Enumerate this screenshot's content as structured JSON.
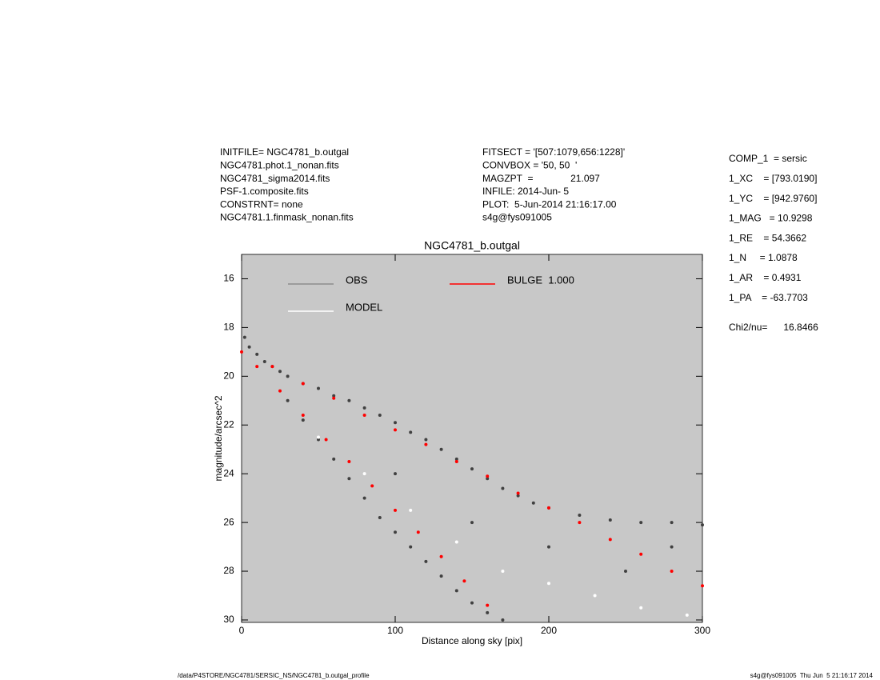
{
  "header": {
    "left": [
      "INITFILE= NGC4781_b.outgal",
      "NGC4781.phot.1_nonan.fits",
      "NGC4781_sigma2014.fits",
      "PSF-1.composite.fits",
      "CONSTRNT= none",
      "NGC4781.1.finmask_nonan.fits"
    ],
    "middle": [
      "FITSECT = '[507:1079,656:1228]'",
      "CONVBOX = '50, 50  '",
      "MAGZPT  =              21.097",
      "INFILE: 2014-Jun- 5",
      "PLOT:  5-Jun-2014 21:16:17.00",
      "s4g@fys091005"
    ],
    "right": [
      "COMP_1  = sersic",
      "1_XC    = [793.0190]",
      "1_YC    = [942.9760]",
      "1_MAG   = 10.9298",
      "1_RE    = 54.3662",
      "1_N     = 1.0878",
      "1_AR    = 0.4931",
      "1_PA    = -63.7703"
    ],
    "chi": "Chi2/nu=      16.8466"
  },
  "chart_data": {
    "type": "scatter",
    "title": "NGC4781_b.outgal",
    "x_label": "Distance along sky [pix]",
    "y_label": "magnitude/arcsec^2",
    "xlim": [
      0,
      300
    ],
    "ylim": [
      30.1,
      15
    ],
    "xticks": [
      0,
      100,
      200,
      300
    ],
    "yticks": [
      16,
      18,
      20,
      22,
      24,
      26,
      28,
      30
    ],
    "background": "#c8c8c8",
    "series": [
      {
        "name": "OBS",
        "color": "#404040",
        "legend_color": "#8c8c8c",
        "x": [
          2,
          5,
          10,
          15,
          20,
          25,
          30,
          40,
          50,
          60,
          70,
          80,
          90,
          100,
          110,
          120,
          130,
          140,
          150,
          160,
          170,
          180,
          190,
          200,
          220,
          240,
          260,
          280,
          300,
          30,
          40,
          50,
          60,
          70,
          80,
          90,
          100,
          110,
          120,
          130,
          140,
          150,
          160,
          170,
          100,
          150,
          200,
          250,
          280
        ],
        "values": [
          18.4,
          18.8,
          19.1,
          19.4,
          19.6,
          19.8,
          20.0,
          20.3,
          20.5,
          20.8,
          21.0,
          21.3,
          21.6,
          21.9,
          22.3,
          22.6,
          23.0,
          23.4,
          23.8,
          24.2,
          24.6,
          24.9,
          25.2,
          25.4,
          25.7,
          25.9,
          26.0,
          26.0,
          26.1,
          21.0,
          21.8,
          22.6,
          23.4,
          24.2,
          25.0,
          25.8,
          26.4,
          27.0,
          27.6,
          28.2,
          28.8,
          29.3,
          29.7,
          30.0,
          24.0,
          26.0,
          27.0,
          28.0,
          27.0
        ]
      },
      {
        "name": "MODEL",
        "color": "#ffffff",
        "legend_color": "#ffffff",
        "x": [
          50,
          80,
          110,
          140,
          170,
          200,
          230,
          260,
          290
        ],
        "values": [
          22.5,
          24.0,
          25.5,
          26.8,
          28.0,
          28.5,
          29.0,
          29.5,
          29.8
        ]
      },
      {
        "name": "BULGE  1.000",
        "color": "#ff0000",
        "legend_color": "#ff0000",
        "x": [
          0,
          20,
          40,
          60,
          80,
          100,
          120,
          140,
          160,
          180,
          200,
          220,
          240,
          260,
          280,
          300,
          10,
          25,
          40,
          55,
          70,
          85,
          100,
          115,
          130,
          145,
          160
        ],
        "values": [
          19.0,
          19.6,
          20.3,
          20.9,
          21.6,
          22.2,
          22.8,
          23.5,
          24.1,
          24.8,
          25.4,
          26.0,
          26.7,
          27.3,
          28.0,
          28.6,
          19.6,
          20.6,
          21.6,
          22.6,
          23.5,
          24.5,
          25.5,
          26.4,
          27.4,
          28.4,
          29.4
        ]
      }
    ]
  },
  "footer": {
    "left": "/data/P4STORE/NGC4781/SERSIC_NS/NGC4781_b.outgal_profile",
    "right": "s4g@fys091005  Thu Jun  5 21:16:17 2014"
  }
}
